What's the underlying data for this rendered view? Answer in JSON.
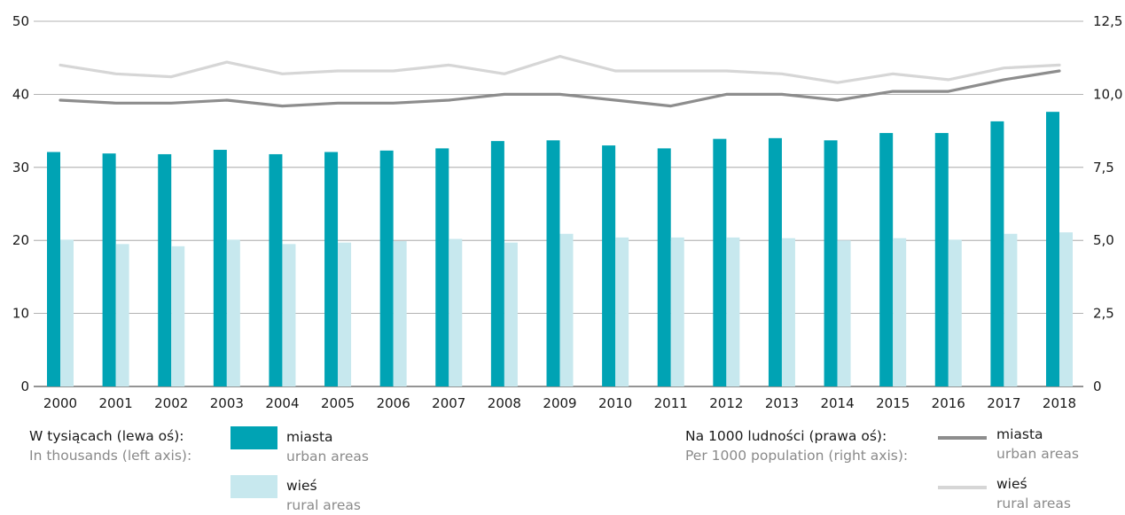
{
  "chart_data": {
    "type": "bar",
    "categories": [
      "2000",
      "2001",
      "2002",
      "2003",
      "2004",
      "2005",
      "2006",
      "2007",
      "2008",
      "2009",
      "2010",
      "2011",
      "2012",
      "2013",
      "2014",
      "2015",
      "2016",
      "2017",
      "2018"
    ],
    "left_axis": {
      "ylim": [
        0,
        50
      ],
      "ticks": [
        "0",
        "10",
        "20",
        "30",
        "40",
        "50"
      ]
    },
    "right_axis": {
      "ylim": [
        0,
        12.5
      ],
      "ticks": [
        "0",
        "2,5",
        "5,0",
        "7,5",
        "10,0",
        "12,5"
      ]
    },
    "bar_series": [
      {
        "name": "miasta",
        "name_en": "urban areas",
        "color": "#00a3b4",
        "values": [
          32.1,
          31.9,
          31.8,
          32.4,
          31.8,
          32.1,
          32.3,
          32.6,
          33.6,
          33.7,
          33.0,
          32.6,
          33.9,
          34.0,
          33.7,
          34.7,
          34.7,
          36.3,
          37.6
        ]
      },
      {
        "name": "wieś",
        "name_en": "rural areas",
        "color": "#c7e8ee",
        "values": [
          20.1,
          19.5,
          19.2,
          20.1,
          19.5,
          19.7,
          19.9,
          20.2,
          19.7,
          20.9,
          20.4,
          20.4,
          20.4,
          20.3,
          20.0,
          20.3,
          20.1,
          20.9,
          21.1
        ]
      }
    ],
    "line_series": [
      {
        "name": "miasta",
        "name_en": "urban areas",
        "color": "#8d8d8d",
        "axis": "right",
        "values": [
          9.8,
          9.7,
          9.7,
          9.8,
          9.6,
          9.7,
          9.7,
          9.8,
          10.0,
          10.0,
          9.8,
          9.6,
          10.0,
          10.0,
          9.8,
          10.1,
          10.1,
          10.5,
          10.8
        ]
      },
      {
        "name": "wieś",
        "name_en": "rural areas",
        "color": "#d6d6d6",
        "axis": "right",
        "values": [
          11.0,
          10.7,
          10.6,
          11.1,
          10.7,
          10.8,
          10.8,
          11.0,
          10.7,
          11.3,
          10.8,
          10.8,
          10.8,
          10.7,
          10.4,
          10.7,
          10.5,
          10.9,
          11.0
        ]
      }
    ],
    "grid": true
  },
  "legend": {
    "left_title_pl": "W tysiącach (lewa oś):",
    "left_title_en": "In thousands (left axis):",
    "right_title_pl": "Na 1000 ludności (prawa oś):",
    "right_title_en": "Per 1000 population (right axis):"
  }
}
